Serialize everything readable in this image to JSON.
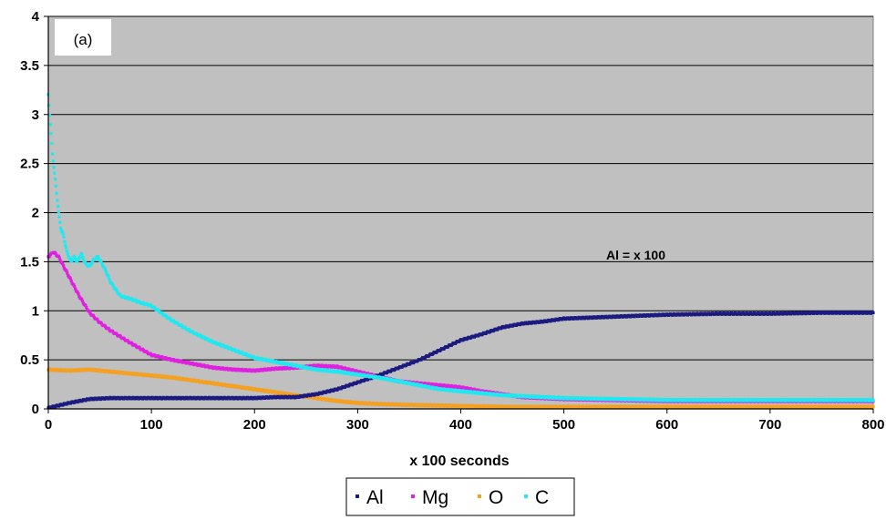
{
  "chart_data": {
    "type": "scatter",
    "panel_label": "(a)",
    "xlabel": "x 100 seconds",
    "ylabel": "",
    "xlim": [
      0,
      800
    ],
    "ylim": [
      0,
      4
    ],
    "xticks": [
      "0",
      "100",
      "200",
      "300",
      "400",
      "500",
      "600",
      "700",
      "800"
    ],
    "yticks": [
      "0",
      "0.5",
      "1",
      "1.5",
      "2",
      "2.5",
      "3",
      "3.5",
      "4"
    ],
    "grid": "horizontal",
    "background": "#c0c0c0",
    "legend_position": "bottom",
    "annotation": "Al = x 100",
    "series": [
      {
        "name": "Al",
        "color": "#1a1a80",
        "points": [
          [
            0,
            0.01
          ],
          [
            20,
            0.06
          ],
          [
            40,
            0.1
          ],
          [
            60,
            0.11
          ],
          [
            80,
            0.11
          ],
          [
            100,
            0.11
          ],
          [
            120,
            0.11
          ],
          [
            150,
            0.11
          ],
          [
            180,
            0.11
          ],
          [
            200,
            0.11
          ],
          [
            220,
            0.12
          ],
          [
            240,
            0.12
          ],
          [
            260,
            0.15
          ],
          [
            280,
            0.2
          ],
          [
            300,
            0.27
          ],
          [
            320,
            0.34
          ],
          [
            340,
            0.42
          ],
          [
            360,
            0.5
          ],
          [
            380,
            0.6
          ],
          [
            400,
            0.7
          ],
          [
            420,
            0.76
          ],
          [
            440,
            0.83
          ],
          [
            460,
            0.87
          ],
          [
            480,
            0.89
          ],
          [
            500,
            0.92
          ],
          [
            550,
            0.94
          ],
          [
            600,
            0.96
          ],
          [
            650,
            0.97
          ],
          [
            700,
            0.97
          ],
          [
            750,
            0.98
          ],
          [
            800,
            0.98
          ]
        ]
      },
      {
        "name": "Mg",
        "color": "#e020e0",
        "points": [
          [
            0,
            1.55
          ],
          [
            5,
            1.6
          ],
          [
            10,
            1.55
          ],
          [
            20,
            1.35
          ],
          [
            30,
            1.15
          ],
          [
            40,
            0.98
          ],
          [
            50,
            0.88
          ],
          [
            60,
            0.8
          ],
          [
            80,
            0.67
          ],
          [
            100,
            0.55
          ],
          [
            120,
            0.5
          ],
          [
            140,
            0.46
          ],
          [
            160,
            0.42
          ],
          [
            180,
            0.4
          ],
          [
            200,
            0.39
          ],
          [
            220,
            0.41
          ],
          [
            240,
            0.42
          ],
          [
            260,
            0.44
          ],
          [
            280,
            0.43
          ],
          [
            300,
            0.38
          ],
          [
            320,
            0.33
          ],
          [
            340,
            0.28
          ],
          [
            360,
            0.26
          ],
          [
            380,
            0.24
          ],
          [
            400,
            0.22
          ],
          [
            420,
            0.18
          ],
          [
            440,
            0.15
          ],
          [
            460,
            0.12
          ],
          [
            500,
            0.1
          ],
          [
            550,
            0.09
          ],
          [
            600,
            0.08
          ],
          [
            700,
            0.08
          ],
          [
            800,
            0.08
          ]
        ]
      },
      {
        "name": "O",
        "color": "#f5a020",
        "points": [
          [
            0,
            0.4
          ],
          [
            20,
            0.39
          ],
          [
            40,
            0.4
          ],
          [
            60,
            0.38
          ],
          [
            80,
            0.36
          ],
          [
            100,
            0.34
          ],
          [
            120,
            0.32
          ],
          [
            140,
            0.29
          ],
          [
            160,
            0.26
          ],
          [
            180,
            0.23
          ],
          [
            200,
            0.2
          ],
          [
            220,
            0.17
          ],
          [
            240,
            0.14
          ],
          [
            260,
            0.11
          ],
          [
            280,
            0.08
          ],
          [
            300,
            0.06
          ],
          [
            320,
            0.05
          ],
          [
            350,
            0.04
          ],
          [
            400,
            0.03
          ],
          [
            450,
            0.02
          ],
          [
            500,
            0.02
          ],
          [
            600,
            0.02
          ],
          [
            700,
            0.02
          ],
          [
            800,
            0.02
          ]
        ]
      },
      {
        "name": "C",
        "color": "#20e8f0",
        "points": [
          [
            0,
            3.2
          ],
          [
            2,
            2.9
          ],
          [
            4,
            2.6
          ],
          [
            6,
            2.4
          ],
          [
            8,
            2.2
          ],
          [
            10,
            2.0
          ],
          [
            12,
            1.85
          ],
          [
            15,
            1.75
          ],
          [
            18,
            1.6
          ],
          [
            22,
            1.5
          ],
          [
            25,
            1.55
          ],
          [
            28,
            1.5
          ],
          [
            32,
            1.58
          ],
          [
            36,
            1.48
          ],
          [
            40,
            1.45
          ],
          [
            44,
            1.52
          ],
          [
            48,
            1.55
          ],
          [
            52,
            1.48
          ],
          [
            56,
            1.4
          ],
          [
            60,
            1.3
          ],
          [
            65,
            1.22
          ],
          [
            70,
            1.15
          ],
          [
            80,
            1.12
          ],
          [
            90,
            1.08
          ],
          [
            100,
            1.05
          ],
          [
            120,
            0.9
          ],
          [
            140,
            0.78
          ],
          [
            160,
            0.68
          ],
          [
            180,
            0.6
          ],
          [
            200,
            0.52
          ],
          [
            220,
            0.48
          ],
          [
            240,
            0.44
          ],
          [
            260,
            0.4
          ],
          [
            280,
            0.38
          ],
          [
            300,
            0.35
          ],
          [
            320,
            0.32
          ],
          [
            340,
            0.28
          ],
          [
            360,
            0.24
          ],
          [
            380,
            0.2
          ],
          [
            400,
            0.18
          ],
          [
            420,
            0.16
          ],
          [
            440,
            0.14
          ],
          [
            460,
            0.13
          ],
          [
            480,
            0.12
          ],
          [
            500,
            0.11
          ],
          [
            550,
            0.1
          ],
          [
            600,
            0.09
          ],
          [
            700,
            0.09
          ],
          [
            800,
            0.09
          ]
        ]
      }
    ]
  }
}
